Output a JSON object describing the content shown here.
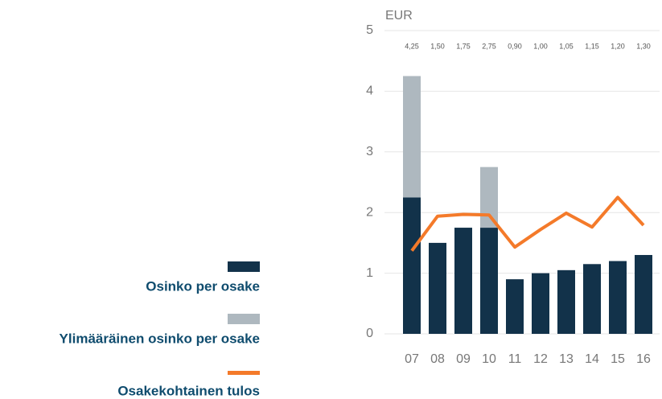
{
  "chart_data": {
    "type": "bar_line",
    "y_label": "EUR",
    "categories": [
      "07",
      "08",
      "09",
      "10",
      "11",
      "12",
      "13",
      "14",
      "15",
      "16"
    ],
    "value_labels": [
      "4,25",
      "1,50",
      "1,75",
      "2,75",
      "0,90",
      "1,00",
      "1,05",
      "1,15",
      "1,20",
      "1,30"
    ],
    "series": [
      {
        "name": "Osinko per osake",
        "color": "#12324a",
        "kind": "bar",
        "values": [
          2.25,
          1.5,
          1.75,
          1.75,
          0.9,
          1.0,
          1.05,
          1.15,
          1.2,
          1.3
        ]
      },
      {
        "name": "Ylimääräinen osinko per osake",
        "color": "#aeb8bf",
        "kind": "bar",
        "values": [
          2.0,
          null,
          null,
          1.0,
          null,
          null,
          null,
          null,
          null,
          null
        ]
      },
      {
        "name": "Osakekohtainen tulos",
        "color": "#f47a2a",
        "kind": "line",
        "values": [
          1.37,
          1.94,
          1.97,
          1.96,
          1.43,
          1.72,
          1.99,
          1.76,
          2.25,
          1.79
        ]
      }
    ],
    "ylim": [
      0,
      5
    ],
    "yticks": [
      0,
      1,
      2,
      3,
      4,
      5
    ],
    "grid": true,
    "stacked": true,
    "legend": "left"
  }
}
